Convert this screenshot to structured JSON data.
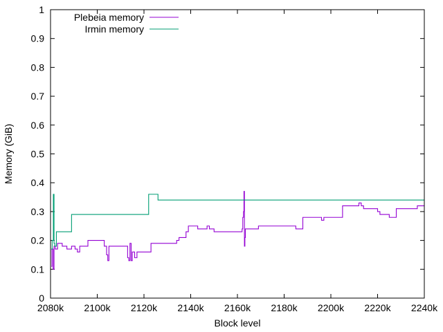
{
  "chart_data": {
    "type": "line",
    "xlabel": "Block level",
    "ylabel": "Memory (GiB)",
    "xlim": [
      2080,
      2240
    ],
    "ylim": [
      0,
      1
    ],
    "x_ticks": [
      {
        "value": 2080,
        "label": "2080k"
      },
      {
        "value": 2100,
        "label": "2100k"
      },
      {
        "value": 2120,
        "label": "2120k"
      },
      {
        "value": 2140,
        "label": "2140k"
      },
      {
        "value": 2160,
        "label": "2160k"
      },
      {
        "value": 2180,
        "label": "2180k"
      },
      {
        "value": 2200,
        "label": "2200k"
      },
      {
        "value": 2220,
        "label": "2220k"
      },
      {
        "value": 2240,
        "label": "2240k"
      }
    ],
    "y_ticks": [
      {
        "value": 0,
        "label": "0"
      },
      {
        "value": 0.1,
        "label": "0.1"
      },
      {
        "value": 0.2,
        "label": "0.2"
      },
      {
        "value": 0.3,
        "label": "0.3"
      },
      {
        "value": 0.4,
        "label": "0.4"
      },
      {
        "value": 0.5,
        "label": "0.5"
      },
      {
        "value": 0.6,
        "label": "0.6"
      },
      {
        "value": 0.7,
        "label": "0.7"
      },
      {
        "value": 0.8,
        "label": "0.8"
      },
      {
        "value": 0.9,
        "label": "0.9"
      },
      {
        "value": 1,
        "label": "1"
      }
    ],
    "grid": false,
    "legend_position": "top-left",
    "series": [
      {
        "name": "Plebeia memory",
        "color": "#9400d3",
        "step": true,
        "points": [
          [
            2080.3,
            0.11
          ],
          [
            2080.6,
            0.17
          ],
          [
            2081.1,
            0.1
          ],
          [
            2081.5,
            0.18
          ],
          [
            2082.0,
            0.17
          ],
          [
            2083.0,
            0.19
          ],
          [
            2085.0,
            0.18
          ],
          [
            2087.0,
            0.17
          ],
          [
            2089.0,
            0.18
          ],
          [
            2090.5,
            0.17
          ],
          [
            2091.5,
            0.16
          ],
          [
            2092.5,
            0.18
          ],
          [
            2096.0,
            0.2
          ],
          [
            2103.0,
            0.18
          ],
          [
            2104.0,
            0.15
          ],
          [
            2104.5,
            0.13
          ],
          [
            2105.0,
            0.18
          ],
          [
            2108.0,
            0.18
          ],
          [
            2111.0,
            0.18
          ],
          [
            2113.0,
            0.14
          ],
          [
            2113.5,
            0.13
          ],
          [
            2114.0,
            0.19
          ],
          [
            2114.5,
            0.13
          ],
          [
            2115.0,
            0.16
          ],
          [
            2116.0,
            0.14
          ],
          [
            2117.0,
            0.16
          ],
          [
            2123.0,
            0.19
          ],
          [
            2134.0,
            0.2
          ],
          [
            2135.0,
            0.21
          ],
          [
            2138.0,
            0.23
          ],
          [
            2139.0,
            0.25
          ],
          [
            2143.0,
            0.24
          ],
          [
            2147.0,
            0.25
          ],
          [
            2148.0,
            0.24
          ],
          [
            2150.0,
            0.23
          ],
          [
            2162.0,
            0.24
          ],
          [
            2162.3,
            0.28
          ],
          [
            2162.6,
            0.3
          ],
          [
            2162.8,
            0.37
          ],
          [
            2163.0,
            0.18
          ],
          [
            2163.2,
            0.21
          ],
          [
            2163.4,
            0.24
          ],
          [
            2169.0,
            0.25
          ],
          [
            2185.0,
            0.24
          ],
          [
            2188.0,
            0.28
          ],
          [
            2196.0,
            0.27
          ],
          [
            2197.0,
            0.28
          ],
          [
            2205.0,
            0.32
          ],
          [
            2212.0,
            0.33
          ],
          [
            2213.0,
            0.32
          ],
          [
            2214.0,
            0.31
          ],
          [
            2220.0,
            0.3
          ],
          [
            2221.0,
            0.29
          ],
          [
            2225.0,
            0.28
          ],
          [
            2228.0,
            0.31
          ],
          [
            2237.0,
            0.32
          ],
          [
            2240.0,
            0.32
          ]
        ]
      },
      {
        "name": "Irmin memory",
        "color": "#009e73",
        "step": true,
        "points": [
          [
            2080.3,
            0.17
          ],
          [
            2080.7,
            0.2
          ],
          [
            2081.2,
            0.36
          ],
          [
            2081.5,
            0.19
          ],
          [
            2081.8,
            0.18
          ],
          [
            2082.5,
            0.23
          ],
          [
            2089.0,
            0.29
          ],
          [
            2122.0,
            0.36
          ],
          [
            2126.0,
            0.34
          ],
          [
            2240.0,
            0.34
          ]
        ]
      }
    ]
  }
}
